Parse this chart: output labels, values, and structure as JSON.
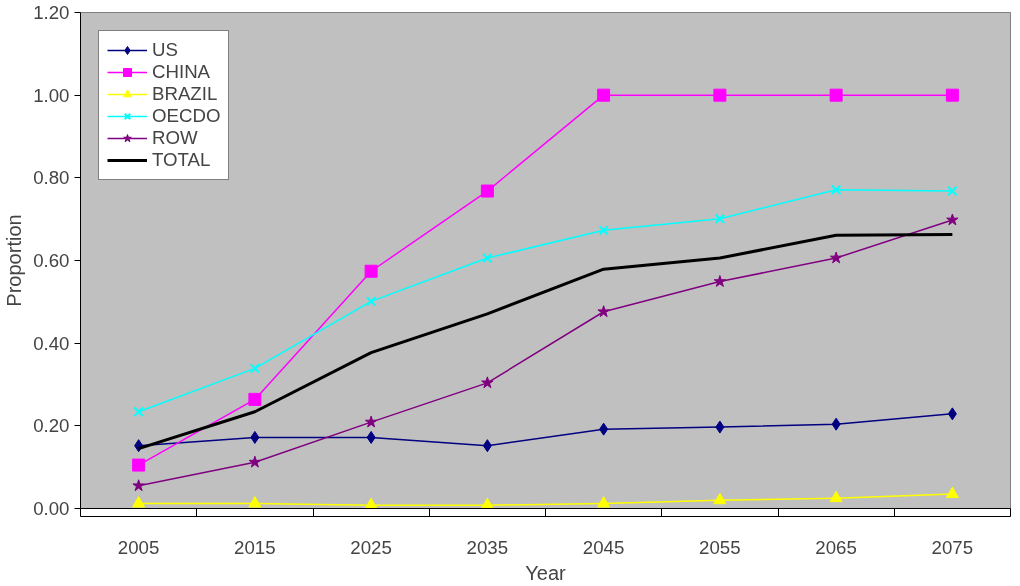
{
  "chart_data": {
    "type": "line",
    "xlabel": "Year",
    "ylabel": "Proportion",
    "categories": [
      "2005",
      "2015",
      "2025",
      "2035",
      "2045",
      "2055",
      "2065",
      "2075"
    ],
    "series": [
      {
        "name": "US",
        "color": "#000080",
        "marker": "diamond",
        "values": [
          0.152,
          0.172,
          0.172,
          0.152,
          0.192,
          0.197,
          0.204,
          0.229
        ]
      },
      {
        "name": "CHINA",
        "color": "#ff00ff",
        "marker": "square",
        "values": [
          0.105,
          0.264,
          0.574,
          0.768,
          1.0,
          1.0,
          1.0,
          1.0
        ]
      },
      {
        "name": "BRAZIL",
        "color": "#ffff00",
        "marker": "triangle",
        "values": [
          0.012,
          0.012,
          0.008,
          0.008,
          0.012,
          0.02,
          0.025,
          0.035
        ]
      },
      {
        "name": "OECDO",
        "color": "#00ffff",
        "marker": "cross",
        "values": [
          0.234,
          0.339,
          0.501,
          0.606,
          0.673,
          0.701,
          0.771,
          0.768
        ]
      },
      {
        "name": "ROW",
        "color": "#800080",
        "marker": "star",
        "values": [
          0.055,
          0.112,
          0.209,
          0.304,
          0.476,
          0.549,
          0.606,
          0.698
        ]
      },
      {
        "name": "TOTAL",
        "color": "#000000",
        "marker": "none",
        "values": [
          0.145,
          0.234,
          0.377,
          0.471,
          0.579,
          0.606,
          0.661,
          0.663
        ]
      }
    ],
    "ylim": [
      0,
      1.2
    ],
    "yticks": [
      {
        "value": 0,
        "label": "0.00"
      },
      {
        "value": 0.2,
        "label": "0.20"
      },
      {
        "value": 0.4,
        "label": "0.40"
      },
      {
        "value": 0.6,
        "label": "0.60"
      },
      {
        "value": 0.8,
        "label": "0.80"
      },
      {
        "value": 1.0,
        "label": "1.00"
      },
      {
        "value": 1.2,
        "label": "1.20"
      }
    ],
    "grid": false,
    "legend": "top left"
  }
}
